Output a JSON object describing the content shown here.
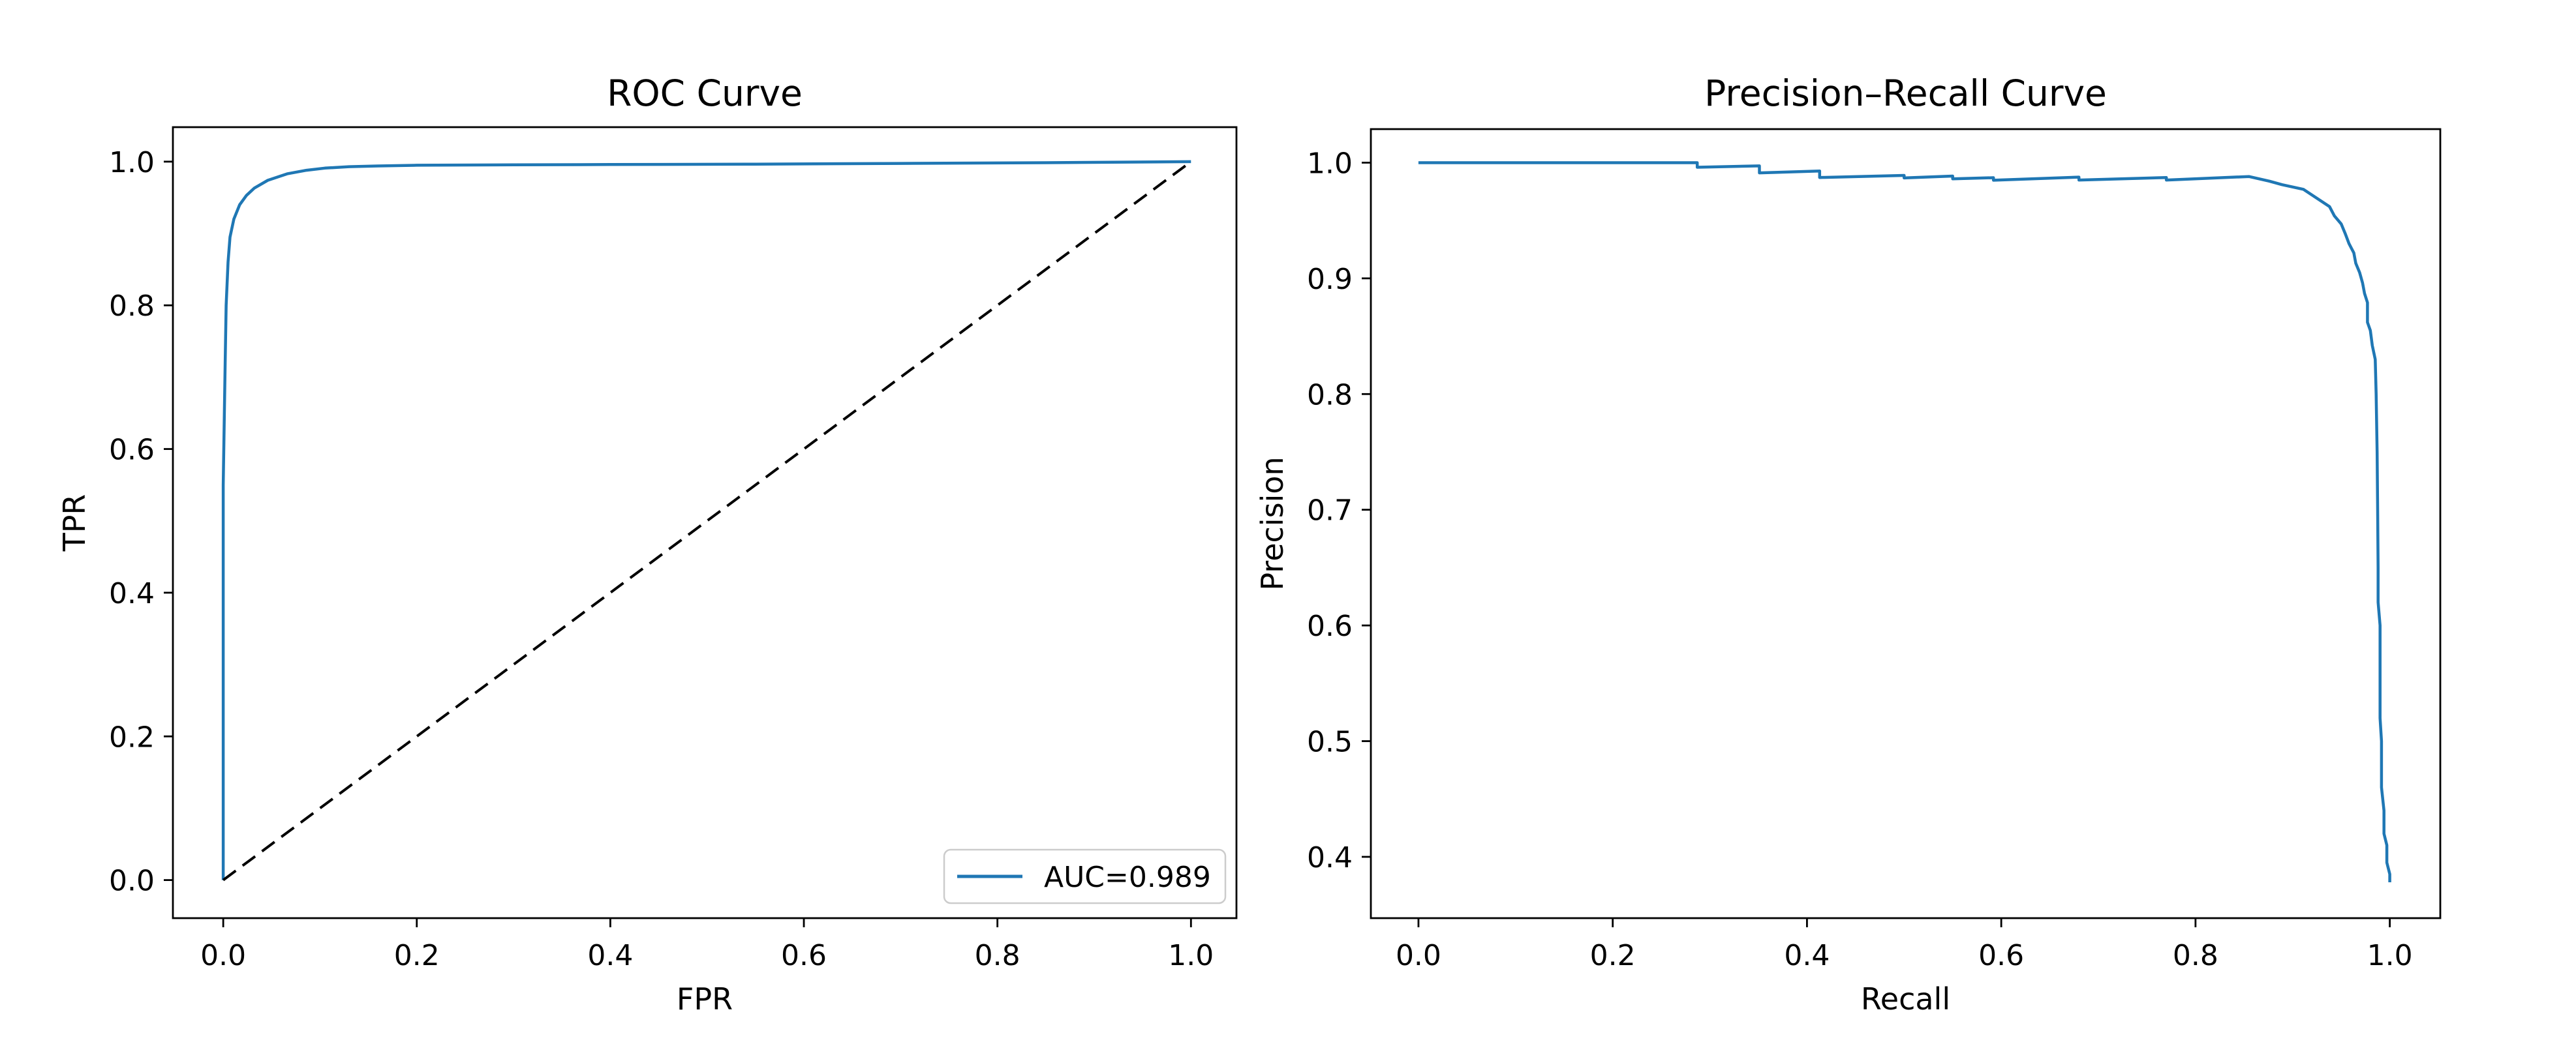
{
  "page": {
    "background_color": "#ffffff",
    "redaction_bar_color": "#000000"
  },
  "chart_data": [
    {
      "type": "line",
      "title": "ROC Curve",
      "xlabel": "FPR",
      "ylabel": "TPR",
      "xlim": [
        -0.052,
        1.047
      ],
      "ylim": [
        -0.053,
        1.048
      ],
      "grid": false,
      "xticks": [
        0.0,
        0.2,
        0.4,
        0.6,
        0.8,
        1.0
      ],
      "xtick_labels": [
        "0.0",
        "0.2",
        "0.4",
        "0.6",
        "0.8",
        "1.0"
      ],
      "yticks": [
        0.0,
        0.2,
        0.4,
        0.6,
        0.8,
        1.0
      ],
      "ytick_labels": [
        "0.0",
        "0.2",
        "0.4",
        "0.6",
        "0.8",
        "1.0"
      ],
      "legend": {
        "position": "lower right",
        "entries": [
          {
            "label": "AUC=0.989",
            "color": "#1f77b4",
            "style": "solid"
          }
        ]
      },
      "series": [
        {
          "name": "roc-curve",
          "color": "#1f77b4",
          "style": "solid",
          "width": 4.5,
          "points": [
            [
              0.0,
              0.0
            ],
            [
              0.0,
              0.55
            ],
            [
              0.002,
              0.72
            ],
            [
              0.003,
              0.8
            ],
            [
              0.005,
              0.86
            ],
            [
              0.007,
              0.895
            ],
            [
              0.011,
              0.92
            ],
            [
              0.017,
              0.94
            ],
            [
              0.024,
              0.953
            ],
            [
              0.032,
              0.963
            ],
            [
              0.046,
              0.974
            ],
            [
              0.066,
              0.983
            ],
            [
              0.086,
              0.988
            ],
            [
              0.105,
              0.991
            ],
            [
              0.13,
              0.993
            ],
            [
              0.16,
              0.994
            ],
            [
              0.2,
              0.995
            ],
            [
              0.3,
              0.9955
            ],
            [
              0.4,
              0.996
            ],
            [
              0.55,
              0.9965
            ],
            [
              0.7,
              0.9975
            ],
            [
              0.85,
              0.9985
            ],
            [
              1.0,
              1.0
            ]
          ]
        },
        {
          "name": "chance-diagonal",
          "color": "#000000",
          "style": "dashed",
          "width": 4,
          "points": [
            [
              0.0,
              0.0
            ],
            [
              1.0,
              1.0
            ]
          ]
        }
      ]
    },
    {
      "type": "line",
      "title": "Precision–Recall Curve",
      "xlabel": "Recall",
      "ylabel": "Precision",
      "xlim": [
        -0.049,
        1.052
      ],
      "ylim": [
        0.347,
        1.029
      ],
      "grid": false,
      "xticks": [
        0.0,
        0.2,
        0.4,
        0.6,
        0.8,
        1.0
      ],
      "xtick_labels": [
        "0.0",
        "0.2",
        "0.4",
        "0.6",
        "0.8",
        "1.0"
      ],
      "yticks": [
        0.4,
        0.5,
        0.6,
        0.7,
        0.8,
        0.9,
        1.0
      ],
      "ytick_labels": [
        "0.4",
        "0.5",
        "0.6",
        "0.7",
        "0.8",
        "0.9",
        "1.0"
      ],
      "legend": null,
      "series": [
        {
          "name": "pr-curve",
          "color": "#1f77b4",
          "style": "solid",
          "width": 4.5,
          "points": [
            [
              0.0,
              1.0
            ],
            [
              0.287,
              1.0
            ],
            [
              0.287,
              0.996
            ],
            [
              0.351,
              0.9972
            ],
            [
              0.351,
              0.9912
            ],
            [
              0.413,
              0.9928
            ],
            [
              0.413,
              0.9872
            ],
            [
              0.5,
              0.989
            ],
            [
              0.5,
              0.9868
            ],
            [
              0.55,
              0.9884
            ],
            [
              0.55,
              0.986
            ],
            [
              0.592,
              0.987
            ],
            [
              0.592,
              0.9848
            ],
            [
              0.68,
              0.9875
            ],
            [
              0.68,
              0.985
            ],
            [
              0.77,
              0.9872
            ],
            [
              0.77,
              0.985
            ],
            [
              0.855,
              0.988
            ],
            [
              0.876,
              0.984
            ],
            [
              0.889,
              0.981
            ],
            [
              0.911,
              0.977
            ],
            [
              0.92,
              0.972
            ],
            [
              0.929,
              0.967
            ],
            [
              0.938,
              0.962
            ],
            [
              0.943,
              0.954
            ],
            [
              0.95,
              0.947
            ],
            [
              0.954,
              0.939
            ],
            [
              0.958,
              0.93
            ],
            [
              0.963,
              0.922
            ],
            [
              0.965,
              0.913
            ],
            [
              0.969,
              0.905
            ],
            [
              0.972,
              0.896
            ],
            [
              0.974,
              0.887
            ],
            [
              0.977,
              0.879
            ],
            [
              0.977,
              0.862
            ],
            [
              0.98,
              0.855
            ],
            [
              0.982,
              0.842
            ],
            [
              0.985,
              0.83
            ],
            [
              0.986,
              0.8
            ],
            [
              0.987,
              0.75
            ],
            [
              0.9875,
              0.7
            ],
            [
              0.988,
              0.65
            ],
            [
              0.988,
              0.62
            ],
            [
              0.99,
              0.6
            ],
            [
              0.99,
              0.52
            ],
            [
              0.9915,
              0.5
            ],
            [
              0.9915,
              0.46
            ],
            [
              0.994,
              0.44
            ],
            [
              0.994,
              0.42
            ],
            [
              0.997,
              0.41
            ],
            [
              0.997,
              0.395
            ],
            [
              1.0,
              0.385
            ],
            [
              1.0,
              0.378
            ]
          ]
        }
      ]
    }
  ]
}
